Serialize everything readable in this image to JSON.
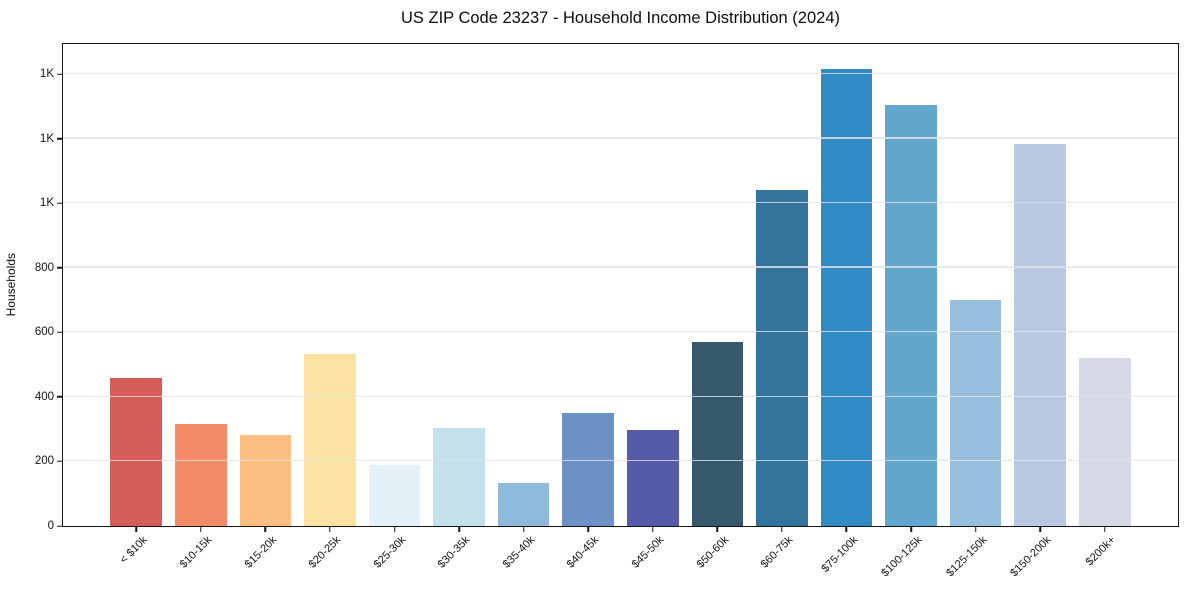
{
  "chart_data": {
    "type": "bar",
    "title": "US ZIP Code 23237 - Household Income Distribution (2024)",
    "xlabel": "",
    "ylabel": "Households",
    "categories": [
      "< $10k",
      "$10-15k",
      "$15-20k",
      "$20-25k",
      "$25-30k",
      "$30-35k",
      "$35-40k",
      "$40-45k",
      "$45-50k",
      "$50-60k",
      "$60-75k",
      "$75-100k",
      "$100-125k",
      "$125-150k",
      "$150-200k",
      "$200k+"
    ],
    "values": [
      458,
      315,
      281,
      532,
      190,
      305,
      132,
      351,
      297,
      571,
      1041,
      1417,
      1303,
      700,
      1183,
      521
    ],
    "bar_colors": [
      "#d65c5a",
      "#f38a68",
      "#fcbd80",
      "#fde3a3",
      "#e5f1f8",
      "#c3e1ed",
      "#90badb",
      "#6b91c5",
      "#565aab",
      "#35596b",
      "#32749c",
      "#318bc5",
      "#61a6cd",
      "#98bedd",
      "#b7c9e3",
      "#d8d9e7"
    ],
    "ylim": [
      0,
      1493
    ],
    "yticks": [
      0,
      200,
      400,
      600,
      800,
      1000,
      1200,
      1400
    ],
    "ytick_labels": [
      "0",
      "200",
      "400",
      "600",
      "800",
      "1K",
      "1K",
      "1K"
    ],
    "grid": "horizontal",
    "legend": "none",
    "spines": "full-box",
    "axis_color": "#151515",
    "grid_color": "#e8e8ec"
  }
}
